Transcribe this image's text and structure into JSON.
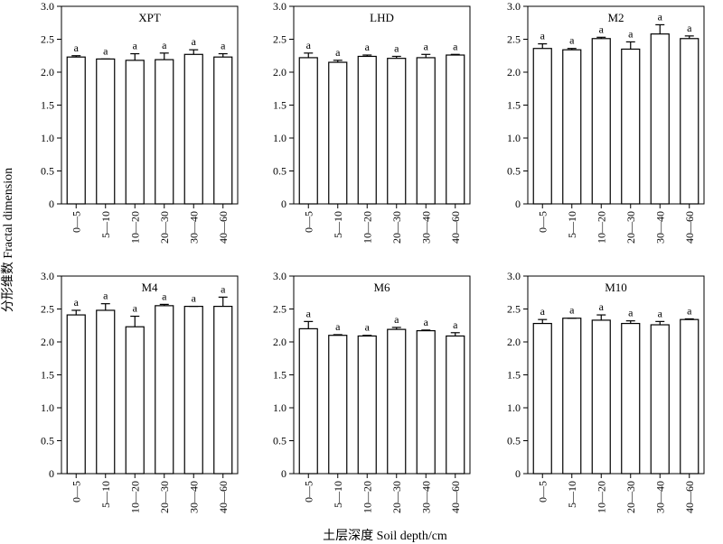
{
  "figure": {
    "ylabel": "分形维数 Fractal dimension",
    "xlabel": "土层深度 Soil depth/cm"
  },
  "chart_data": [
    {
      "type": "bar",
      "title": "XPT",
      "categories": [
        "0—5",
        "5—10",
        "10—20",
        "20—30",
        "30—40",
        "40—60"
      ],
      "values": [
        2.23,
        2.2,
        2.18,
        2.19,
        2.27,
        2.23
      ],
      "errors": [
        0.02,
        0.0,
        0.1,
        0.1,
        0.07,
        0.05
      ],
      "significance": [
        "a",
        "a",
        "a",
        "a",
        "a",
        "a"
      ],
      "yticks": [
        "0",
        "0.5",
        "1.0",
        "1.5",
        "2.0",
        "2.5",
        "3.0"
      ],
      "ylim": [
        0,
        3.0
      ]
    },
    {
      "type": "bar",
      "title": "LHD",
      "categories": [
        "0—5",
        "5—10",
        "10—20",
        "20—30",
        "30—40",
        "40—60"
      ],
      "values": [
        2.22,
        2.15,
        2.24,
        2.21,
        2.22,
        2.26
      ],
      "errors": [
        0.07,
        0.03,
        0.02,
        0.03,
        0.05,
        0.01
      ],
      "significance": [
        "a",
        "a",
        "a",
        "a",
        "a",
        "a"
      ],
      "yticks": [
        "0",
        "0.5",
        "1.0",
        "1.5",
        "2.0",
        "2.5",
        "3.0"
      ],
      "ylim": [
        0,
        3.0
      ]
    },
    {
      "type": "bar",
      "title": "M2",
      "categories": [
        "0—5",
        "5—10",
        "10—20",
        "20—30",
        "30—40",
        "40—60"
      ],
      "values": [
        2.36,
        2.34,
        2.51,
        2.35,
        2.58,
        2.51
      ],
      "errors": [
        0.07,
        0.02,
        0.02,
        0.11,
        0.14,
        0.04
      ],
      "significance": [
        "a",
        "a",
        "a",
        "a",
        "a",
        "a"
      ],
      "yticks": [
        "0",
        "0.5",
        "1.0",
        "1.5",
        "2.0",
        "2.5",
        "3.0"
      ],
      "ylim": [
        0,
        3.0
      ]
    },
    {
      "type": "bar",
      "title": "M4",
      "categories": [
        "0—5",
        "5—10",
        "10—20",
        "20—30",
        "30—40",
        "40—60"
      ],
      "values": [
        2.41,
        2.48,
        2.23,
        2.55,
        2.54,
        2.54
      ],
      "errors": [
        0.07,
        0.1,
        0.16,
        0.02,
        0.0,
        0.14
      ],
      "significance": [
        "a",
        "a",
        "a",
        "a",
        "a",
        "a"
      ],
      "yticks": [
        "0",
        "0.5",
        "1.0",
        "1.5",
        "2.0",
        "2.5",
        "3.0"
      ],
      "ylim": [
        0,
        3.0
      ]
    },
    {
      "type": "bar",
      "title": "M6",
      "categories": [
        "0—5",
        "5—10",
        "10—20",
        "20—30",
        "30—40",
        "40—60"
      ],
      "values": [
        2.2,
        2.1,
        2.09,
        2.19,
        2.17,
        2.09
      ],
      "errors": [
        0.11,
        0.01,
        0.01,
        0.03,
        0.01,
        0.05
      ],
      "significance": [
        "a",
        "a",
        "a",
        "a",
        "a",
        "a"
      ],
      "yticks": [
        "0",
        "0.5",
        "1.0",
        "1.5",
        "2.0",
        "2.5",
        "3.0"
      ],
      "ylim": [
        0,
        3.0
      ]
    },
    {
      "type": "bar",
      "title": "M10",
      "categories": [
        "0—5",
        "5—10",
        "10—20",
        "20—30",
        "30—40",
        "40—60"
      ],
      "values": [
        2.28,
        2.36,
        2.33,
        2.28,
        2.26,
        2.34
      ],
      "errors": [
        0.06,
        0.0,
        0.08,
        0.04,
        0.05,
        0.01
      ],
      "significance": [
        "a",
        "a",
        "a",
        "a",
        "a",
        "a"
      ],
      "yticks": [
        "0",
        "0.5",
        "1.0",
        "1.5",
        "2.0",
        "2.5",
        "3.0"
      ],
      "ylim": [
        0,
        3.0
      ]
    }
  ]
}
